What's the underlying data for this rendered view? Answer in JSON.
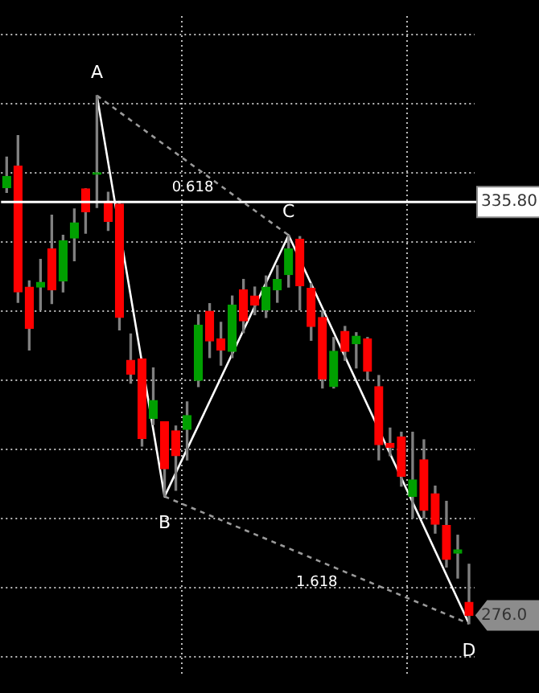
{
  "chart_data": {
    "type": "candlestick",
    "categories": [
      null,
      null,
      null,
      null,
      null,
      null,
      null,
      null,
      null,
      null,
      null,
      null,
      null,
      null,
      null,
      null,
      null,
      null,
      null,
      null,
      null,
      null,
      null,
      null,
      null,
      null,
      null,
      null,
      null,
      null,
      null,
      null,
      null,
      null,
      null,
      null,
      null,
      null,
      null,
      null,
      null,
      null
    ],
    "ohlc": [
      [
        337.9,
        342.3,
        337.2,
        339.5
      ],
      [
        341.0,
        345.4,
        321.3,
        322.8
      ],
      [
        323.5,
        324.4,
        314.4,
        317.5
      ],
      [
        323.5,
        327.5,
        320.2,
        324.2
      ],
      [
        329.0,
        333.9,
        321.1,
        323.1
      ],
      [
        324.4,
        331.0,
        322.8,
        330.2
      ],
      [
        330.6,
        334.8,
        327.3,
        332.8
      ],
      [
        337.7,
        337.7,
        331.3,
        334.4
      ],
      [
        339.8,
        351.2,
        335.0,
        339.9
      ],
      [
        335.9,
        337.2,
        331.7,
        333.0
      ],
      [
        335.5,
        335.9,
        317.3,
        319.1
      ],
      [
        312.9,
        316.7,
        309.6,
        310.9
      ],
      [
        313.1,
        313.1,
        300.5,
        301.6
      ],
      [
        304.5,
        311.8,
        303.6,
        307.1
      ],
      [
        304.0,
        304.0,
        293.2,
        297.2
      ],
      [
        302.7,
        303.4,
        294.1,
        299.1
      ],
      [
        302.9,
        306.9,
        298.5,
        304.9
      ],
      [
        310.0,
        319.5,
        309.1,
        318.0
      ],
      [
        320.0,
        321.1,
        313.3,
        315.7
      ],
      [
        316.0,
        318.4,
        312.2,
        314.4
      ],
      [
        314.2,
        322.2,
        313.3,
        320.9
      ],
      [
        323.1,
        324.6,
        316.9,
        318.6
      ],
      [
        322.2,
        323.5,
        319.5,
        320.9
      ],
      [
        320.2,
        325.1,
        319.1,
        323.5
      ],
      [
        323.1,
        326.6,
        321.3,
        324.6
      ],
      [
        325.3,
        331.0,
        323.5,
        329.0
      ],
      [
        330.4,
        330.8,
        320.2,
        323.7
      ],
      [
        323.3,
        324.0,
        315.8,
        317.8
      ],
      [
        319.1,
        320.0,
        308.9,
        310.2
      ],
      [
        309.1,
        316.2,
        308.9,
        314.2
      ],
      [
        317.1,
        317.8,
        312.9,
        314.2
      ],
      [
        315.3,
        316.9,
        311.8,
        316.4
      ],
      [
        316.0,
        316.2,
        310.0,
        311.3
      ],
      [
        309.1,
        310.7,
        298.5,
        300.7
      ],
      [
        300.9,
        303.1,
        299.1,
        300.3
      ],
      [
        301.8,
        302.5,
        294.7,
        296.1
      ],
      [
        293.2,
        302.5,
        290.1,
        295.6
      ],
      [
        298.5,
        301.4,
        290.1,
        291.2
      ],
      [
        293.6,
        294.7,
        287.9,
        289.2
      ],
      [
        289.0,
        292.5,
        283.0,
        284.1
      ],
      [
        285.0,
        287.6,
        281.4,
        285.5
      ],
      [
        277.9,
        283.4,
        274.8,
        276.0
      ]
    ],
    "colors": [
      "#00a000",
      "#ff0000",
      "#ff0000",
      "#00a000",
      "#ff0000",
      "#00a000",
      "#00a000",
      "#ff0000",
      "#00a000",
      "#ff0000",
      "#ff0000",
      "#ff0000",
      "#ff0000",
      "#00a000",
      "#ff0000",
      "#ff0000",
      "#00a000",
      "#00a000",
      "#ff0000",
      "#ff0000",
      "#00a000",
      "#ff0000",
      "#ff0000",
      "#00a000",
      "#00a000",
      "#00a000",
      "#ff0000",
      "#ff0000",
      "#ff0000",
      "#00a000",
      "#ff0000",
      "#00a000",
      "#ff0000",
      "#ff0000",
      "#ff0000",
      "#ff0000",
      "#00a000",
      "#ff0000",
      "#ff0000",
      "#ff0000",
      "#00a000",
      "#ff0000"
    ],
    "series": [
      {
        "type": "line",
        "color": "#ffffff",
        "line_style": "solid",
        "values": [
          null,
          null,
          null,
          null,
          null,
          null,
          null,
          null,
          351.2,
          null,
          null,
          null,
          null,
          null,
          293.2,
          null,
          null,
          null,
          null,
          null,
          null,
          null,
          null,
          null,
          null,
          331.0,
          null,
          null,
          null,
          null,
          null,
          null,
          null,
          null,
          null,
          null,
          null,
          null,
          null,
          null,
          null,
          274.8
        ]
      },
      {
        "type": "line",
        "color": "#9a9a9a",
        "line_style": "dashed",
        "values": [
          null,
          null,
          null,
          null,
          null,
          null,
          null,
          null,
          351.2,
          null,
          null,
          null,
          null,
          null,
          null,
          null,
          null,
          null,
          null,
          null,
          null,
          null,
          null,
          null,
          null,
          331.0,
          null,
          null,
          null,
          null,
          null,
          null,
          null,
          null,
          null,
          null,
          null,
          null,
          null,
          null,
          null,
          null
        ]
      },
      {
        "type": "line",
        "color": "#9a9a9a",
        "line_style": "dashed",
        "values": [
          null,
          null,
          null,
          null,
          null,
          null,
          null,
          null,
          null,
          null,
          null,
          null,
          null,
          null,
          293.2,
          null,
          null,
          null,
          null,
          null,
          null,
          null,
          null,
          null,
          null,
          null,
          null,
          null,
          null,
          null,
          null,
          null,
          null,
          null,
          null,
          null,
          null,
          null,
          null,
          null,
          null,
          274.8
        ]
      }
    ],
    "marker": "none",
    "ylim": [
      267.1,
      362.7
    ],
    "yticks": [
      {
        "value": 270,
        "label": null
      },
      {
        "value": 276.0,
        "label": "276.0"
      },
      {
        "value": 280,
        "label": null
      },
      {
        "value": 290,
        "label": null
      },
      {
        "value": 300,
        "label": null
      },
      {
        "value": 310,
        "label": null
      },
      {
        "value": 320,
        "label": null
      },
      {
        "value": 330,
        "label": null
      },
      {
        "value": 335.8,
        "label": "335.80"
      },
      {
        "value": 340,
        "label": null
      },
      {
        "value": 350,
        "label": null
      },
      {
        "value": 360,
        "label": null
      }
    ],
    "ref_lines": [
      {
        "axis": "y",
        "value": 335.8,
        "color": "#ffffff"
      }
    ],
    "annotations": [
      {
        "text": "A",
        "y": 351.2
      },
      {
        "text": "B",
        "y": 293.2
      },
      {
        "text": "C",
        "y": 331.0
      },
      {
        "text": "D",
        "y": 274.8
      },
      "0.618",
      "1.618"
    ],
    "grid": true,
    "tick_labels": "y"
  }
}
